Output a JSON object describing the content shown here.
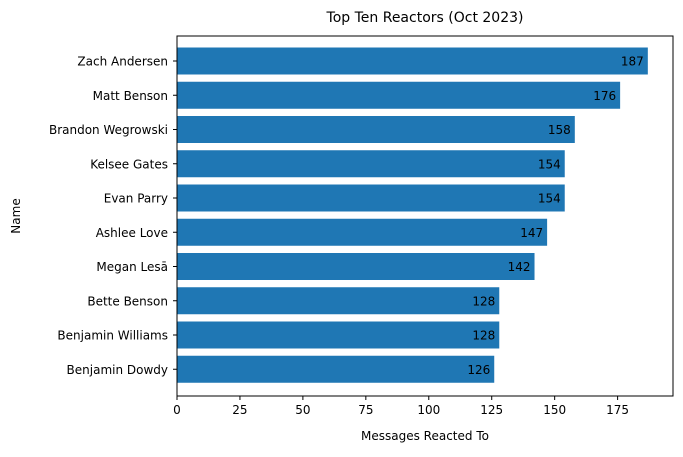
{
  "chart_data": {
    "type": "bar",
    "orientation": "horizontal",
    "title": "Top Ten Reactors (Oct 2023)",
    "xlabel": "Messages Reacted To",
    "ylabel": "Name",
    "categories": [
      "Zach Andersen",
      "Matt Benson",
      "Brandon Wegrowski",
      "Kelsee Gates",
      "Evan Parry",
      "Ashlee Love",
      "Megan Lesā",
      "Bette Benson",
      "Benjamin Williams",
      "Benjamin Dowdy"
    ],
    "values": [
      187,
      176,
      158,
      154,
      154,
      147,
      142,
      128,
      128,
      126
    ],
    "xlim": [
      0,
      197
    ],
    "xticks": [
      0,
      25,
      50,
      75,
      100,
      125,
      150,
      175
    ],
    "grid": false,
    "data_labels": true,
    "bar_color": "#1f77b4"
  }
}
